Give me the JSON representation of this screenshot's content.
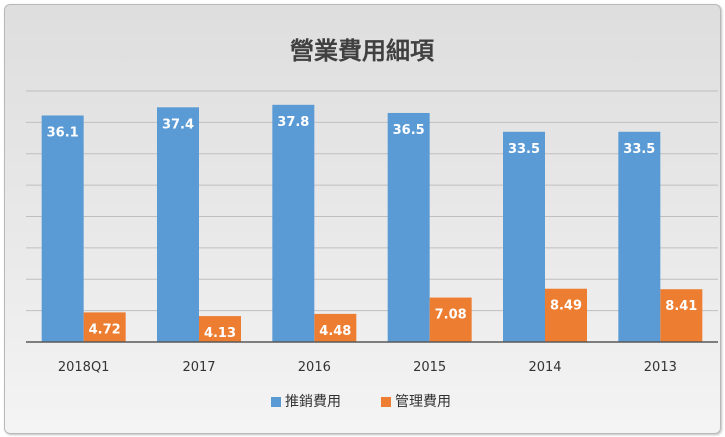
{
  "chart_data": {
    "type": "bar",
    "title": "營業費用細項",
    "categories": [
      "2018Q1",
      "2017",
      "2016",
      "2015",
      "2014",
      "2013"
    ],
    "series": [
      {
        "name": "推銷費用",
        "values": [
          36.1,
          37.4,
          37.8,
          36.5,
          33.5,
          33.5
        ],
        "color": "#5b9bd5"
      },
      {
        "name": "管理費用",
        "values": [
          4.72,
          4.13,
          4.48,
          7.08,
          8.49,
          8.41
        ],
        "color": "#ed7d31"
      }
    ],
    "ylim": [
      0,
      40
    ],
    "grid": true,
    "legend": "bottom",
    "data_labels": true
  }
}
